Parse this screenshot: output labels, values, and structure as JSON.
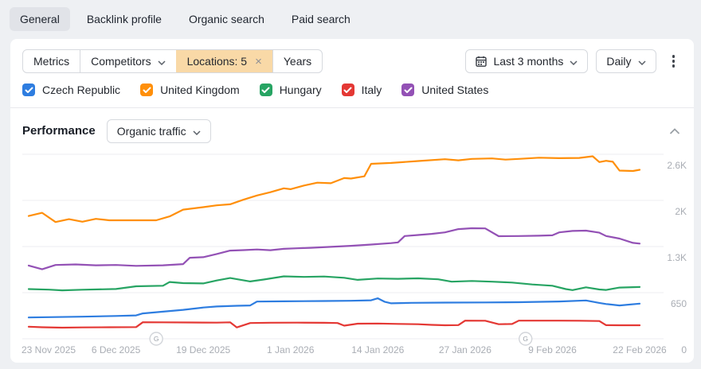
{
  "tabs": {
    "items": [
      "General",
      "Backlink profile",
      "Organic search",
      "Paid search"
    ],
    "active": "General"
  },
  "filters": {
    "segments": [
      {
        "label": "Metrics",
        "type": "plain"
      },
      {
        "label": "Competitors",
        "type": "dropdown"
      },
      {
        "label": "Locations: 5",
        "type": "chip-close",
        "highlight_color": "#f9d9a7"
      },
      {
        "label": "Years",
        "type": "plain"
      }
    ],
    "date_range_label": "Last 3 months",
    "granularity_label": "Daily"
  },
  "performance": {
    "title": "Performance",
    "metric_label": "Organic traffic"
  },
  "colors": {
    "accent_chip": "#f9d9a7",
    "grid": "#ededf0",
    "axis_text": "#a9adb4"
  },
  "chart_data": {
    "type": "line",
    "title": "Performance - Organic traffic",
    "grid": true,
    "legend_position": "top",
    "y_axis": {
      "min": 0,
      "max": 2600,
      "ticks": [
        {
          "v": 0,
          "label": "0"
        },
        {
          "v": 650,
          "label": "650"
        },
        {
          "v": 1300,
          "label": "1.3K"
        },
        {
          "v": 1950,
          "label": "2K"
        },
        {
          "v": 2600,
          "label": "2.6K"
        }
      ]
    },
    "x_axis": {
      "total_days": 91,
      "tick_days": [
        0,
        13,
        26,
        39,
        52,
        65,
        78,
        91
      ],
      "tick_labels": [
        "23 Nov 2025",
        "6 Dec 2025",
        "19 Dec 2025",
        "1 Jan 2026",
        "14 Jan 2026",
        "27 Jan 2026",
        "9 Feb 2026",
        "22 Feb 2026"
      ]
    },
    "annotations": [
      {
        "label": "G",
        "day": 19
      },
      {
        "label": "G",
        "day": 74
      }
    ],
    "series": [
      {
        "name": "Czech Republic",
        "color": "#2e7de0",
        "checked": true,
        "points": [
          [
            0,
            300
          ],
          [
            4,
            306
          ],
          [
            8,
            312
          ],
          [
            13,
            322
          ],
          [
            16,
            330
          ],
          [
            17,
            358
          ],
          [
            20,
            382
          ],
          [
            23,
            408
          ],
          [
            26,
            440
          ],
          [
            28,
            455
          ],
          [
            31,
            465
          ],
          [
            33,
            470
          ],
          [
            34,
            525
          ],
          [
            38,
            528
          ],
          [
            44,
            532
          ],
          [
            48,
            536
          ],
          [
            51,
            542
          ],
          [
            52,
            570
          ],
          [
            53,
            522
          ],
          [
            54,
            500
          ],
          [
            57,
            506
          ],
          [
            62,
            510
          ],
          [
            68,
            512
          ],
          [
            73,
            516
          ],
          [
            79,
            526
          ],
          [
            83,
            540
          ],
          [
            85,
            505
          ],
          [
            86,
            490
          ],
          [
            88,
            470
          ],
          [
            91,
            495
          ]
        ]
      },
      {
        "name": "United Kingdom",
        "color": "#ff8f0a",
        "checked": true,
        "points": [
          [
            0,
            1730
          ],
          [
            2,
            1775
          ],
          [
            4,
            1645
          ],
          [
            6,
            1685
          ],
          [
            8,
            1650
          ],
          [
            10,
            1690
          ],
          [
            12,
            1670
          ],
          [
            19,
            1670
          ],
          [
            21,
            1725
          ],
          [
            23,
            1820
          ],
          [
            26,
            1855
          ],
          [
            28,
            1880
          ],
          [
            30,
            1895
          ],
          [
            32,
            1960
          ],
          [
            34,
            2020
          ],
          [
            36,
            2065
          ],
          [
            38,
            2120
          ],
          [
            39,
            2108
          ],
          [
            41,
            2160
          ],
          [
            43,
            2200
          ],
          [
            45,
            2192
          ],
          [
            47,
            2265
          ],
          [
            48,
            2258
          ],
          [
            50,
            2290
          ],
          [
            51,
            2465
          ],
          [
            52,
            2470
          ],
          [
            54,
            2478
          ],
          [
            58,
            2505
          ],
          [
            62,
            2530
          ],
          [
            64,
            2515
          ],
          [
            66,
            2535
          ],
          [
            69,
            2542
          ],
          [
            71,
            2525
          ],
          [
            73,
            2535
          ],
          [
            76,
            2552
          ],
          [
            79,
            2545
          ],
          [
            82,
            2548
          ],
          [
            84,
            2572
          ],
          [
            85,
            2490
          ],
          [
            86,
            2508
          ],
          [
            87,
            2495
          ],
          [
            88,
            2370
          ],
          [
            90,
            2365
          ],
          [
            91,
            2382
          ]
        ]
      },
      {
        "name": "Hungary",
        "color": "#27a463",
        "checked": true,
        "points": [
          [
            0,
            700
          ],
          [
            3,
            693
          ],
          [
            5,
            682
          ],
          [
            8,
            692
          ],
          [
            13,
            702
          ],
          [
            16,
            740
          ],
          [
            20,
            748
          ],
          [
            21,
            800
          ],
          [
            23,
            785
          ],
          [
            26,
            780
          ],
          [
            28,
            822
          ],
          [
            30,
            856
          ],
          [
            33,
            808
          ],
          [
            35,
            835
          ],
          [
            38,
            880
          ],
          [
            41,
            872
          ],
          [
            44,
            878
          ],
          [
            47,
            860
          ],
          [
            49,
            830
          ],
          [
            52,
            850
          ],
          [
            55,
            845
          ],
          [
            58,
            852
          ],
          [
            61,
            838
          ],
          [
            63,
            805
          ],
          [
            66,
            815
          ],
          [
            69,
            805
          ],
          [
            72,
            792
          ],
          [
            75,
            765
          ],
          [
            78,
            748
          ],
          [
            80,
            700
          ],
          [
            81,
            686
          ],
          [
            83,
            725
          ],
          [
            85,
            695
          ],
          [
            86,
            688
          ],
          [
            88,
            722
          ],
          [
            91,
            730
          ]
        ]
      },
      {
        "name": "Italy",
        "color": "#e43834",
        "checked": true,
        "points": [
          [
            0,
            170
          ],
          [
            2,
            162
          ],
          [
            5,
            157
          ],
          [
            8,
            160
          ],
          [
            12,
            163
          ],
          [
            16,
            165
          ],
          [
            17,
            233
          ],
          [
            20,
            232
          ],
          [
            24,
            230
          ],
          [
            28,
            228
          ],
          [
            30,
            232
          ],
          [
            31,
            160
          ],
          [
            33,
            222
          ],
          [
            36,
            226
          ],
          [
            40,
            228
          ],
          [
            44,
            225
          ],
          [
            46,
            222
          ],
          [
            47,
            185
          ],
          [
            49,
            213
          ],
          [
            52,
            215
          ],
          [
            55,
            210
          ],
          [
            58,
            205
          ],
          [
            60,
            196
          ],
          [
            62,
            190
          ],
          [
            64,
            193
          ],
          [
            65,
            256
          ],
          [
            68,
            254
          ],
          [
            70,
            205
          ],
          [
            72,
            208
          ],
          [
            73,
            255
          ],
          [
            76,
            255
          ],
          [
            79,
            256
          ],
          [
            82,
            254
          ],
          [
            85,
            250
          ],
          [
            86,
            192
          ],
          [
            88,
            190
          ],
          [
            91,
            190
          ]
        ]
      },
      {
        "name": "United States",
        "color": "#9351b5",
        "checked": true,
        "points": [
          [
            0,
            1032
          ],
          [
            2,
            980
          ],
          [
            4,
            1040
          ],
          [
            7,
            1048
          ],
          [
            10,
            1035
          ],
          [
            13,
            1040
          ],
          [
            16,
            1028
          ],
          [
            20,
            1035
          ],
          [
            23,
            1052
          ],
          [
            24,
            1142
          ],
          [
            26,
            1150
          ],
          [
            28,
            1195
          ],
          [
            30,
            1243
          ],
          [
            32,
            1250
          ],
          [
            34,
            1258
          ],
          [
            36,
            1248
          ],
          [
            38,
            1268
          ],
          [
            40,
            1275
          ],
          [
            42,
            1282
          ],
          [
            45,
            1295
          ],
          [
            48,
            1310
          ],
          [
            51,
            1328
          ],
          [
            54,
            1348
          ],
          [
            55,
            1358
          ],
          [
            56,
            1448
          ],
          [
            58,
            1462
          ],
          [
            60,
            1478
          ],
          [
            62,
            1500
          ],
          [
            64,
            1545
          ],
          [
            66,
            1558
          ],
          [
            68,
            1556
          ],
          [
            70,
            1446
          ],
          [
            73,
            1448
          ],
          [
            76,
            1452
          ],
          [
            78,
            1458
          ],
          [
            79,
            1500
          ],
          [
            81,
            1520
          ],
          [
            83,
            1524
          ],
          [
            85,
            1495
          ],
          [
            86,
            1448
          ],
          [
            88,
            1412
          ],
          [
            90,
            1352
          ],
          [
            91,
            1342
          ]
        ]
      }
    ]
  }
}
